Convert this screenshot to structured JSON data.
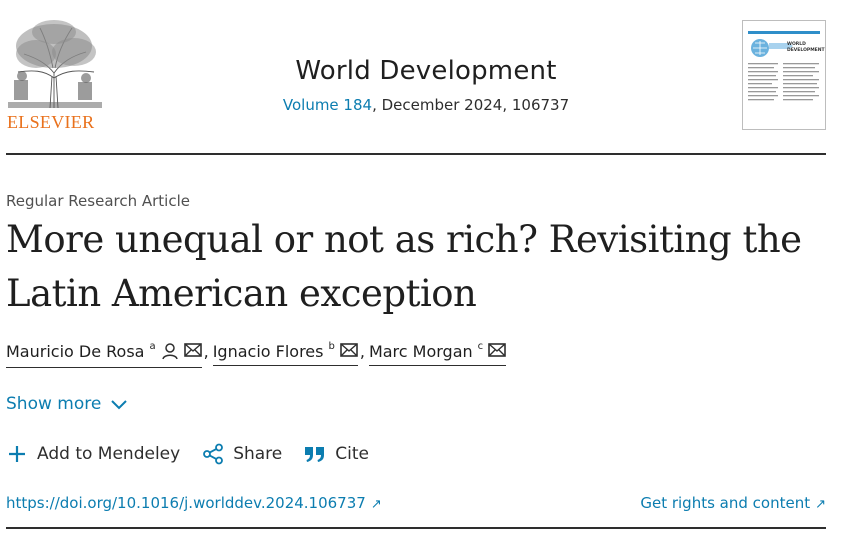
{
  "publisher": {
    "logo_text": "ELSEVIER",
    "logo_icon": "elsevier-tree-icon",
    "brand_color": "#e9711c"
  },
  "journal": {
    "title": "World Development",
    "volume_link": "Volume 184",
    "issue_detail": ", December 2024, 106737",
    "cover_title": "WORLD DEVELOPMENT"
  },
  "article": {
    "type": "Regular Research Article",
    "title_line1": "More unequal or not as rich? Revisiting the",
    "title_line2": "Latin American exception"
  },
  "authors": [
    {
      "name": "Mauricio De Rosa",
      "affiliation": "a",
      "icons": [
        "person-icon",
        "envelope-icon"
      ]
    },
    {
      "name": "Ignacio Flores",
      "affiliation": "b",
      "icons": [
        "envelope-icon"
      ]
    },
    {
      "name": "Marc Morgan",
      "affiliation": "c",
      "icons": [
        "envelope-icon"
      ]
    }
  ],
  "separators": {
    "comma": ","
  },
  "show_more": {
    "label": "Show more",
    "icon": "chevron-down-icon"
  },
  "actions": {
    "mendeley": {
      "label": "Add to Mendeley",
      "icon": "plus-icon"
    },
    "share": {
      "label": "Share",
      "icon": "share-icon"
    },
    "cite": {
      "label": "Cite",
      "icon": "quote-icon"
    }
  },
  "links": {
    "doi": "https://doi.org/10.1016/j.worlddev.2024.106737",
    "doi_arrow": "↗",
    "rights": "Get rights and content",
    "rights_arrow": "↗"
  },
  "colors": {
    "link": "#0c7db0",
    "text": "#1f1f1f",
    "rule": "#2e2e2e"
  }
}
